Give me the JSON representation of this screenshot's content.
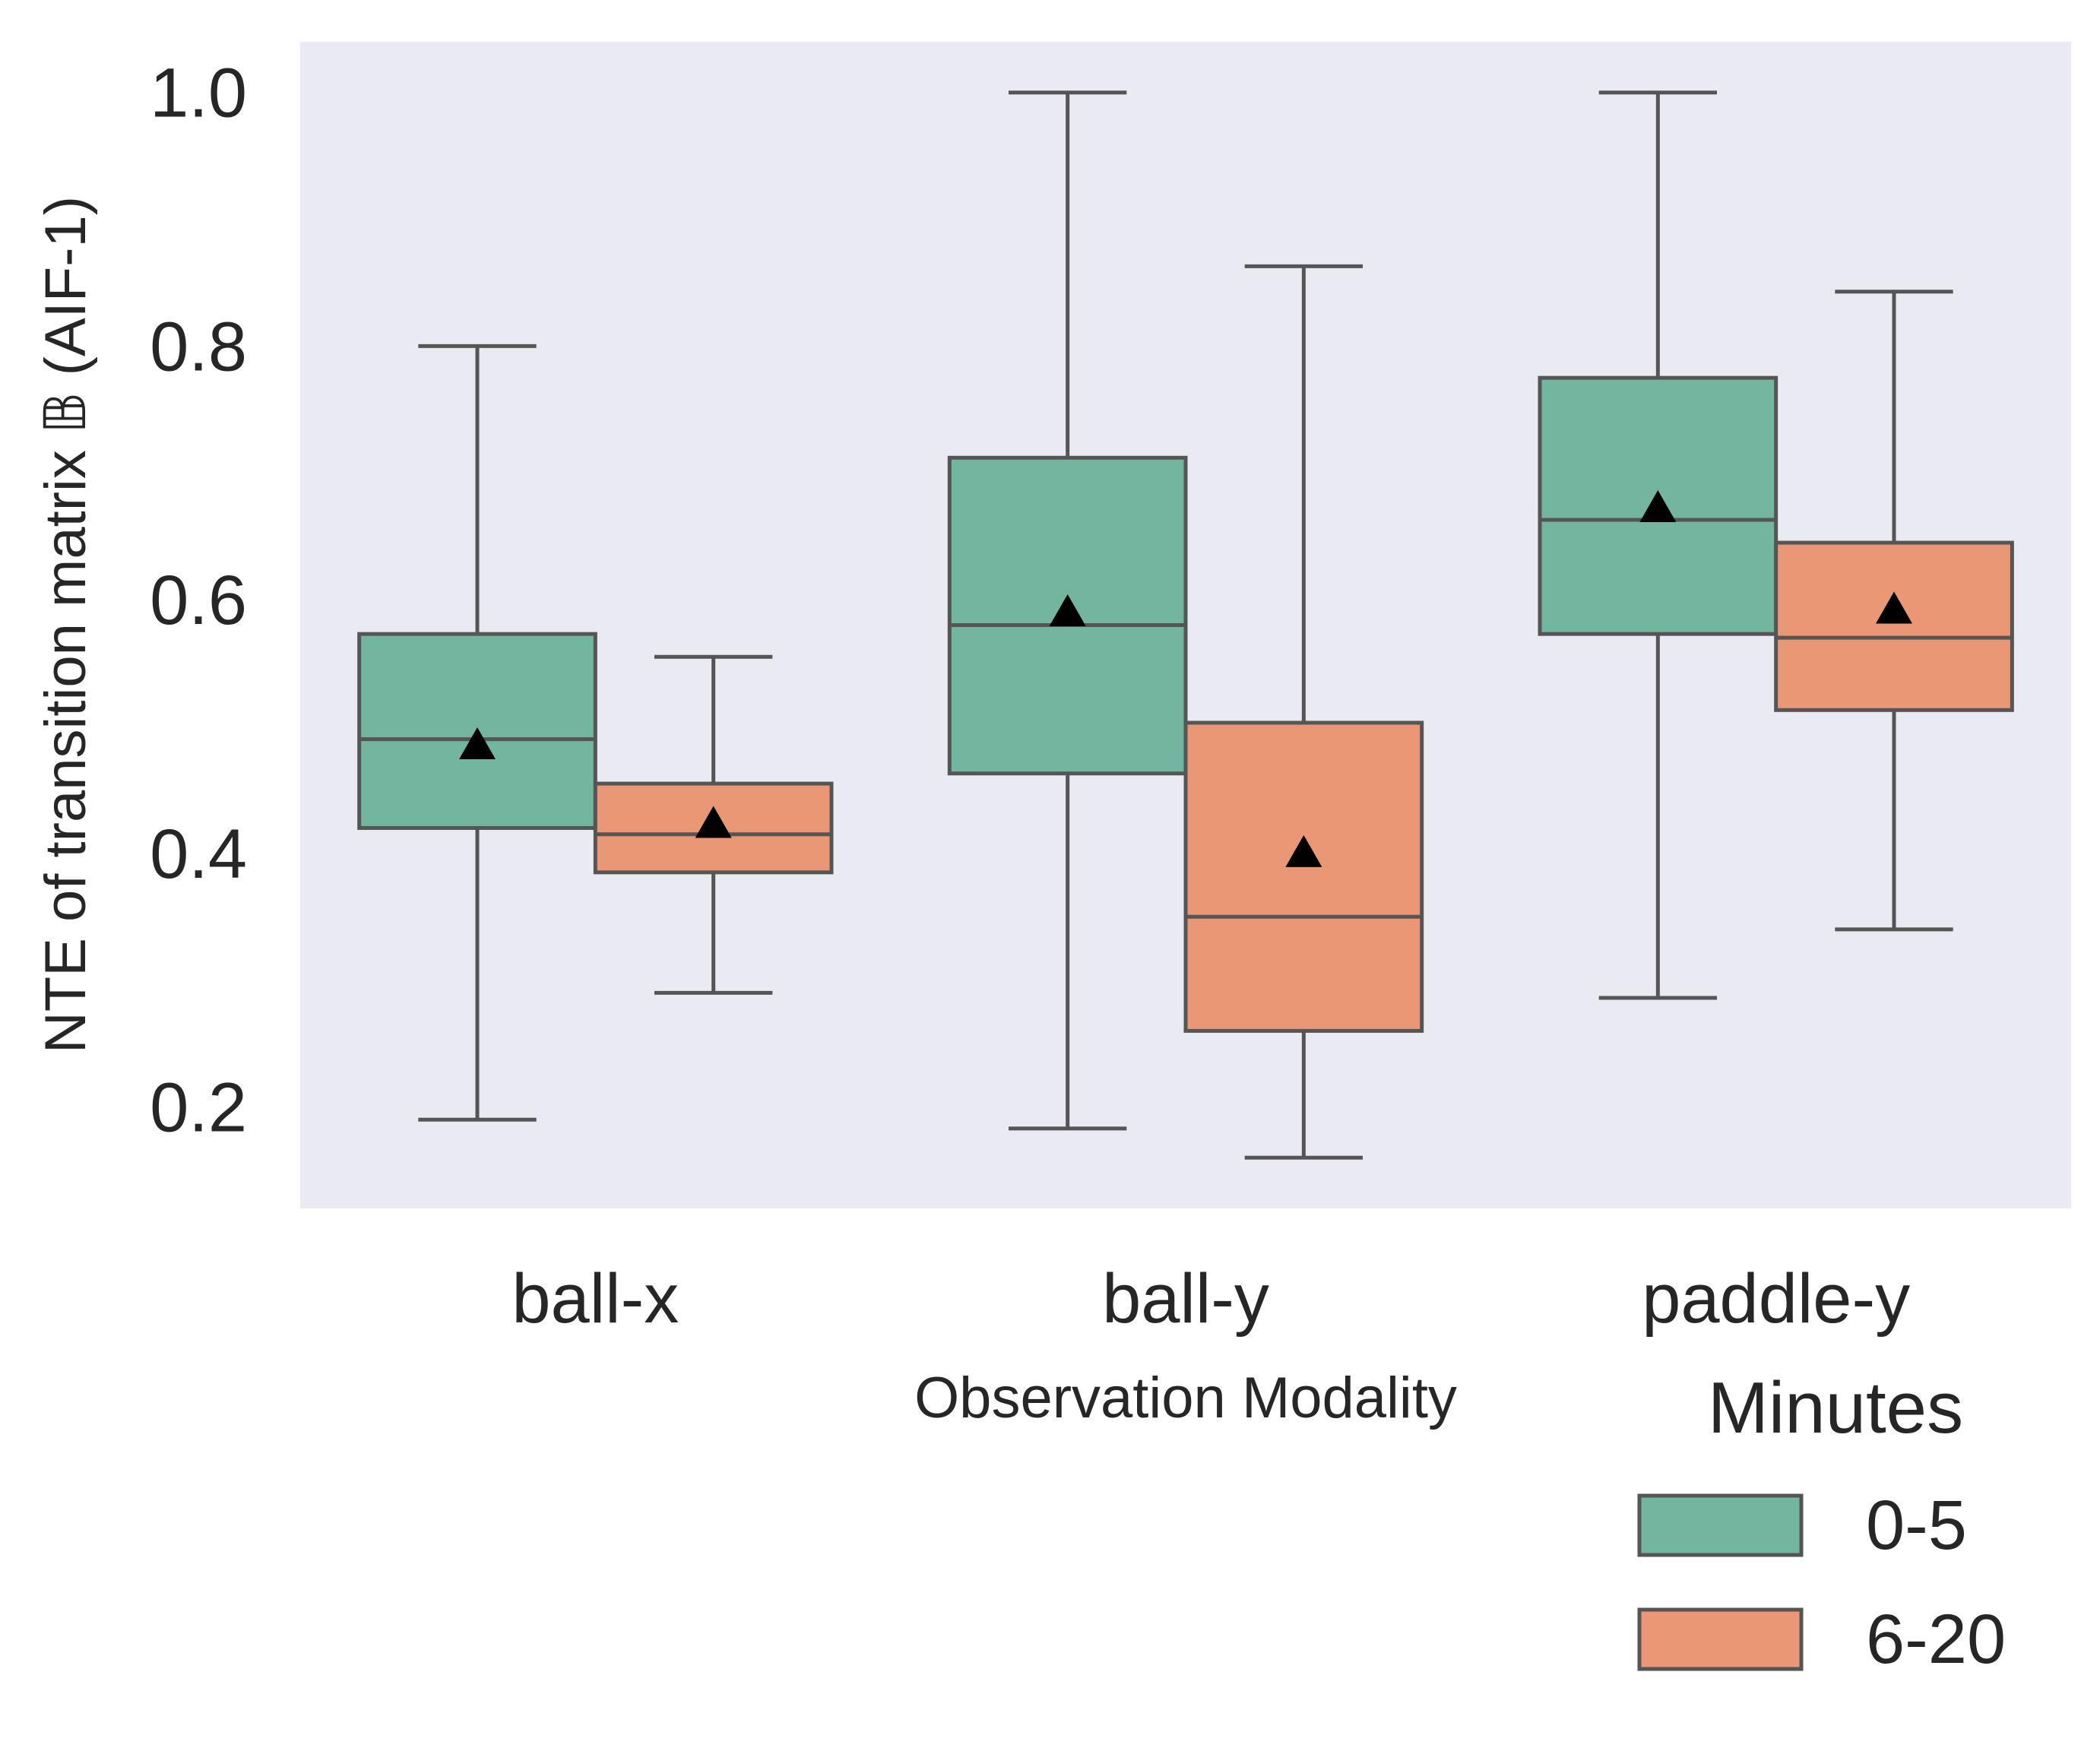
{
  "chart_data": {
    "type": "box",
    "ylabel": "NTE of transition matrix 𝔹 (AIF-1)",
    "xlabel": "Observation Modality",
    "categories": [
      "ball-x",
      "ball-y",
      "paddle-y"
    ],
    "yticks": [
      "0.2",
      "0.4",
      "0.6",
      "0.8",
      "1.0"
    ],
    "ylim": [
      0.12,
      1.04
    ],
    "grid": false,
    "legend": {
      "title": "Minutes",
      "placement": "bottom-right, outside plot",
      "entries": [
        "0-5",
        "6-20"
      ]
    },
    "colors": {
      "0-5": "#73b6a0",
      "6-20": "#e99775",
      "edge": "#555555",
      "mean_marker": "#000000",
      "plot_bg": "#eaeaf2"
    },
    "series": [
      {
        "name": "0-5",
        "boxes": [
          {
            "whisker_low": 0.19,
            "q1": 0.42,
            "median": 0.49,
            "q3": 0.573,
            "whisker_high": 0.8,
            "mean": 0.485
          },
          {
            "whisker_low": 0.183,
            "q1": 0.463,
            "median": 0.58,
            "q3": 0.712,
            "whisker_high": 1.0,
            "mean": 0.59
          },
          {
            "whisker_low": 0.286,
            "q1": 0.573,
            "median": 0.663,
            "q3": 0.775,
            "whisker_high": 1.0,
            "mean": 0.672
          }
        ]
      },
      {
        "name": "6-20",
        "boxes": [
          {
            "whisker_low": 0.29,
            "q1": 0.385,
            "median": 0.415,
            "q3": 0.455,
            "whisker_high": 0.555,
            "mean": 0.423
          },
          {
            "whisker_low": 0.16,
            "q1": 0.26,
            "median": 0.35,
            "q3": 0.503,
            "whisker_high": 0.863,
            "mean": 0.4
          },
          {
            "whisker_low": 0.34,
            "q1": 0.513,
            "median": 0.57,
            "q3": 0.645,
            "whisker_high": 0.843,
            "mean": 0.592
          }
        ]
      }
    ]
  }
}
